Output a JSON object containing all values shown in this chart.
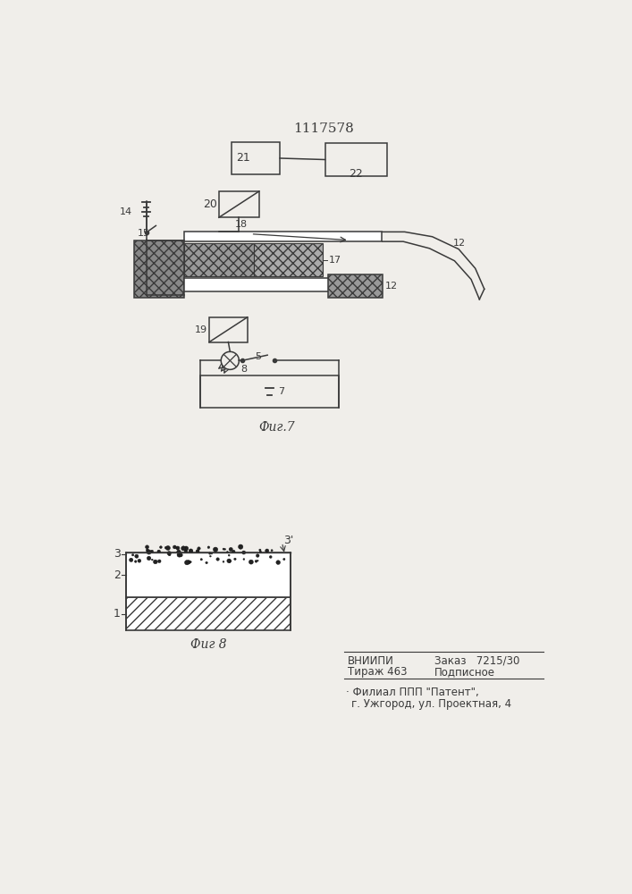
{
  "title_text": "1117578",
  "bg_color": "#f0eeea",
  "fig7_label": "Фиг.7",
  "fig8_label": "Фиг 8",
  "vniipi_line1": "ВНИИПИ",
  "vniipi_line1r": "Заказ   7215/30",
  "vniipi_line2": "Тираж 463",
  "vniipi_line2r": "Подписное",
  "bottom_line3": "Филиал ППП \"Патент\",",
  "bottom_line4": "г. Ужгород, ул. Проектная, 4"
}
